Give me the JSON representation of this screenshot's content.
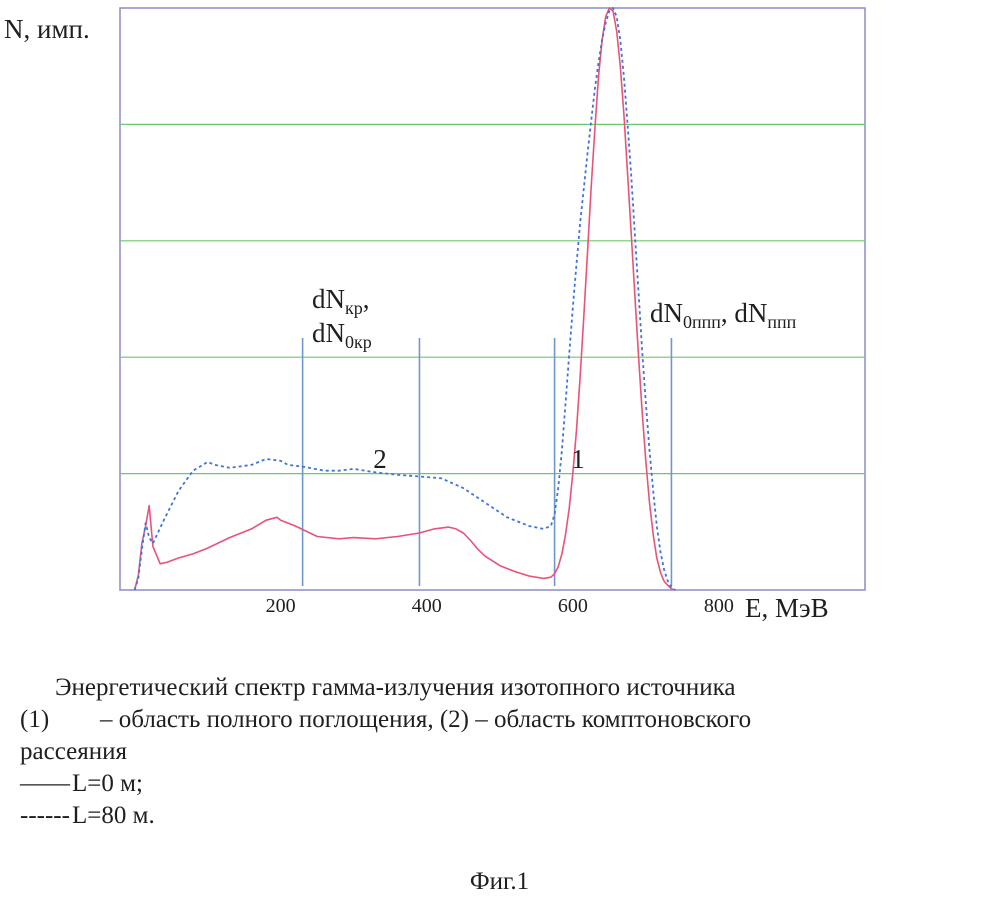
{
  "chart_data": {
    "type": "line",
    "ylabel": "N, имп.",
    "xlabel": "E, МэВ",
    "xlim": [
      -20,
      1000
    ],
    "ylim": [
      0,
      1000
    ],
    "x_ticks": [
      {
        "value": 200,
        "label": "200"
      },
      {
        "value": 400,
        "label": "400"
      },
      {
        "value": 600,
        "label": "600"
      },
      {
        "value": 800,
        "label": "800"
      }
    ],
    "y_gridlines": [
      200,
      400,
      600,
      800
    ],
    "vertical_markers": [
      230,
      390,
      575,
      735
    ],
    "colors": {
      "axes": "#8c8cc9",
      "grid": "#6cc86c",
      "markers": "#6f97cf",
      "series_1": "#e8537a",
      "series_2": "#3f74d8"
    },
    "series": [
      {
        "name": "1",
        "style": "solid",
        "x": [
          0,
          5,
          10,
          15,
          20,
          25,
          35,
          45,
          60,
          80,
          100,
          130,
          160,
          180,
          195,
          200,
          220,
          250,
          280,
          300,
          330,
          360,
          390,
          410,
          430,
          440,
          450,
          460,
          470,
          480,
          500,
          520,
          540,
          560,
          570,
          575,
          580,
          585,
          590,
          595,
          600,
          605,
          610,
          615,
          620,
          625,
          630,
          635,
          640,
          645,
          650,
          655,
          660,
          665,
          670,
          675,
          680,
          685,
          690,
          695,
          700,
          705,
          710,
          715,
          720,
          725,
          730,
          735,
          740
        ],
        "y": [
          0,
          25,
          80,
          110,
          145,
          75,
          45,
          48,
          55,
          62,
          72,
          90,
          105,
          120,
          125,
          120,
          110,
          92,
          88,
          90,
          88,
          92,
          98,
          105,
          108,
          105,
          98,
          85,
          70,
          58,
          42,
          32,
          24,
          20,
          22,
          28,
          40,
          62,
          95,
          140,
          200,
          275,
          365,
          470,
          580,
          690,
          790,
          880,
          945,
          985,
          1000,
          995,
          960,
          900,
          815,
          715,
          610,
          505,
          400,
          305,
          220,
          150,
          95,
          55,
          30,
          15,
          8,
          2,
          0
        ]
      },
      {
        "name": "2",
        "style": "dashed",
        "x": [
          0,
          5,
          10,
          15,
          20,
          25,
          40,
          60,
          80,
          100,
          110,
          130,
          160,
          180,
          200,
          210,
          230,
          260,
          280,
          300,
          330,
          360,
          390,
          420,
          450,
          480,
          510,
          540,
          560,
          570,
          575,
          580,
          585,
          590,
          595,
          600,
          605,
          610,
          615,
          620,
          625,
          630,
          635,
          640,
          645,
          650,
          655,
          660,
          665,
          670,
          675,
          680,
          685,
          690,
          695,
          700,
          705,
          710,
          715,
          720,
          725,
          730,
          735,
          740
        ],
        "y": [
          0,
          20,
          70,
          115,
          90,
          80,
          120,
          170,
          205,
          220,
          215,
          210,
          215,
          225,
          222,
          215,
          212,
          205,
          205,
          208,
          202,
          198,
          195,
          192,
          175,
          150,
          125,
          110,
          105,
          110,
          130,
          175,
          240,
          320,
          405,
          485,
          560,
          630,
          690,
          750,
          805,
          860,
          905,
          945,
          975,
          995,
          1000,
          985,
          945,
          880,
          800,
          710,
          610,
          510,
          410,
          320,
          240,
          170,
          110,
          65,
          35,
          15,
          5,
          0
        ]
      }
    ],
    "annotations": [
      {
        "id": "label-1",
        "text": "1",
        "x": 607,
        "y": 210
      },
      {
        "id": "label-2",
        "text": "2",
        "x": 336,
        "y": 210
      }
    ]
  },
  "marker_labels": {
    "kr": {
      "base": "dN",
      "sub1": "кр",
      "sep": ",",
      "base2": "dN",
      "sub2": "0кр"
    },
    "ppp": {
      "base": "dN",
      "sub1": "0ппп",
      "sep": ", ",
      "base2": "dN",
      "sub2": "ппп"
    }
  },
  "caption": {
    "line1": "Энергетический спектр гамма-излучения изотопного источника",
    "line2_num": "(1)",
    "line2_text": "– область полного поглощения, (2) – область комптоновского",
    "line3": "рассеяния",
    "legend_solid_symbol": "——",
    "legend_solid": "L=0 м;",
    "legend_dashed_symbol": "------",
    "legend_dashed": "L=80 м."
  },
  "figure_label": "Фиг.1"
}
